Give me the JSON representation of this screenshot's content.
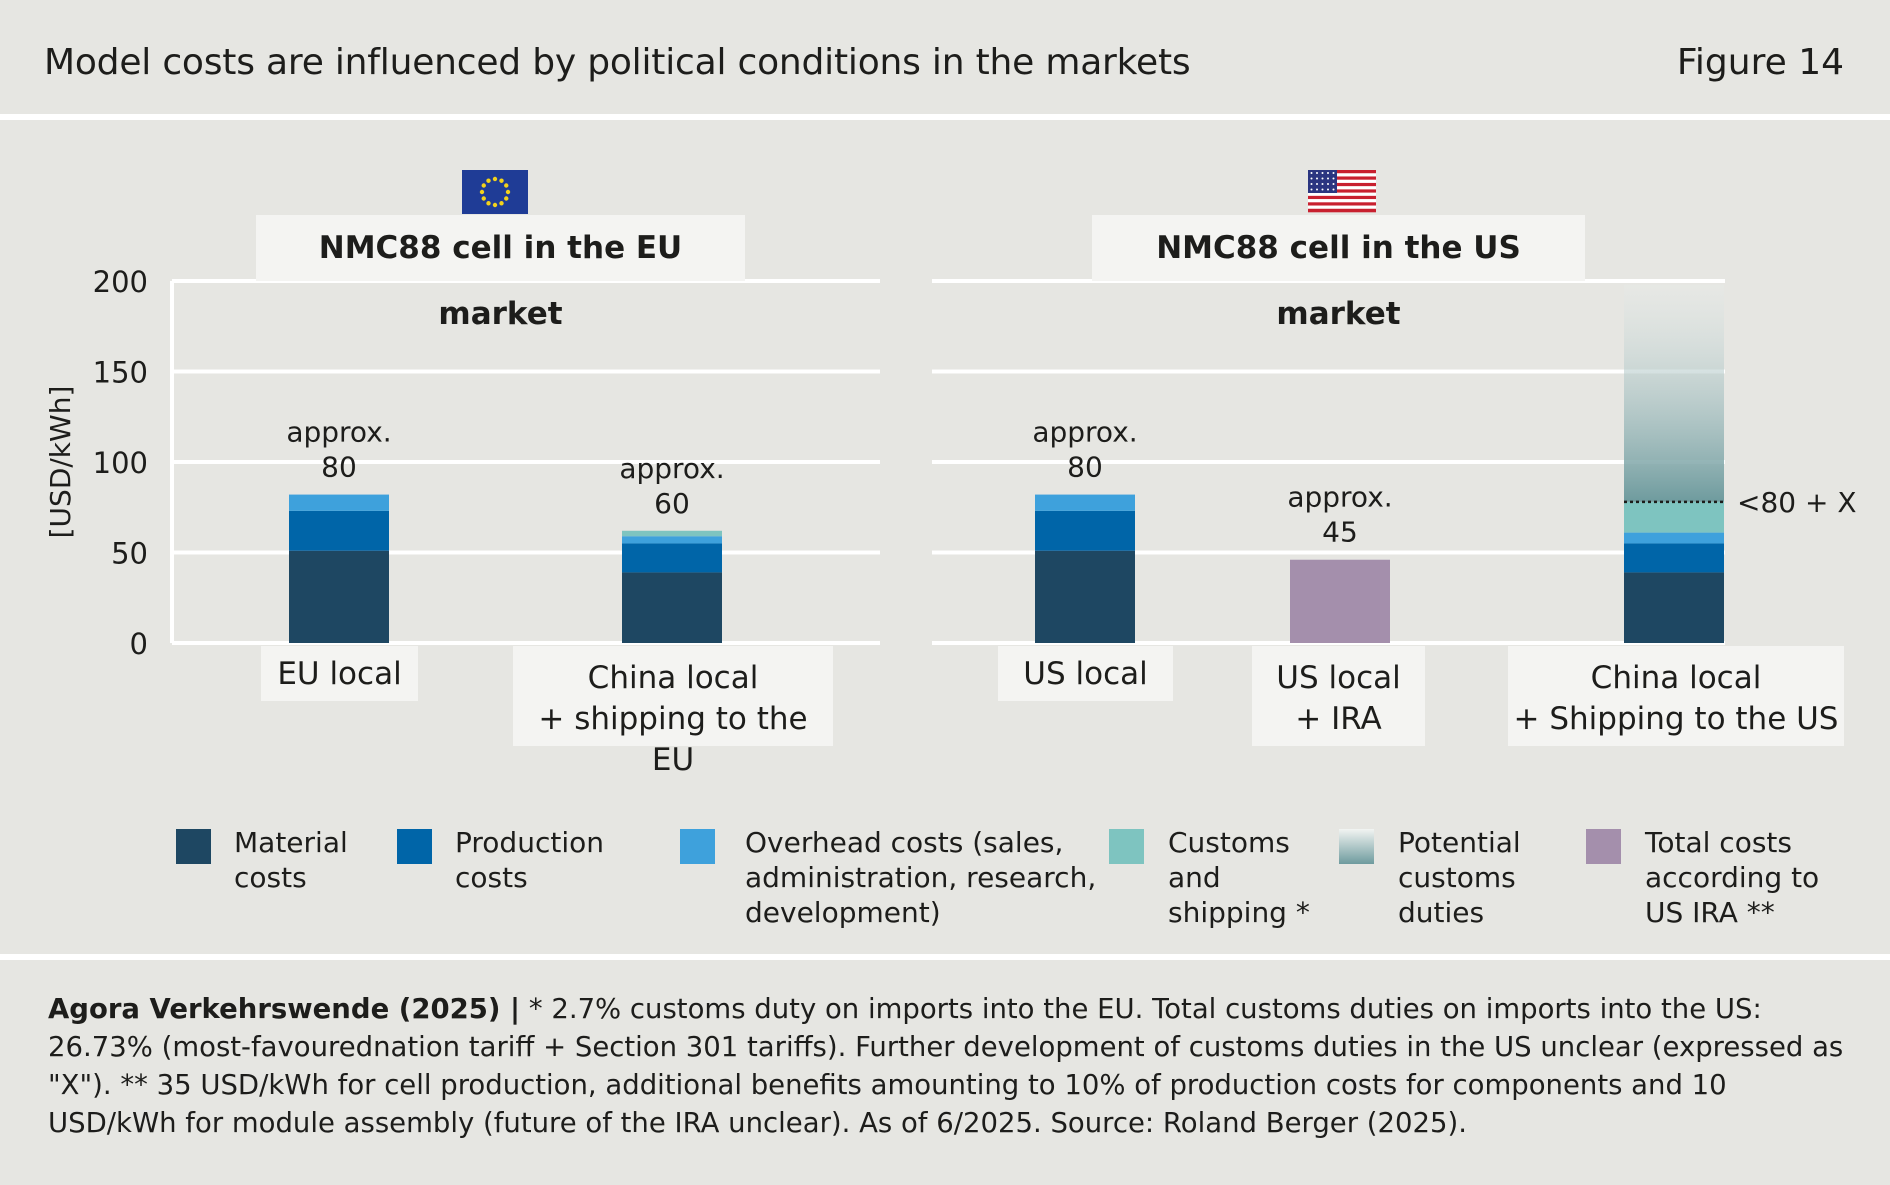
{
  "header": {
    "title": "Model costs are influenced by political conditions in the markets",
    "figure_label": "Figure 14"
  },
  "panels": [
    {
      "title": "NMC88 cell in the EU market",
      "flag": "eu-flag"
    },
    {
      "title": "NMC88 cell in the US market",
      "flag": "us-flag"
    }
  ],
  "chart_data": {
    "type": "bar",
    "stacked": true,
    "ylabel": "[USD/kWh]",
    "ylim": [
      0,
      200
    ],
    "yticks": [
      0,
      50,
      100,
      150,
      200
    ],
    "grid": true,
    "categories": [
      "EU local",
      "China local\n+ shipping to the EU",
      "US local",
      "US local\n+ IRA",
      "China local\n+ Shipping to the US"
    ],
    "panel_of_category": [
      0,
      0,
      1,
      1,
      1
    ],
    "series": [
      {
        "name": "Material costs",
        "color": "#1e4762",
        "values": [
          51,
          39,
          51,
          null,
          39
        ]
      },
      {
        "name": "Production costs",
        "color": "#0065a8",
        "values": [
          22,
          16,
          22,
          null,
          16
        ]
      },
      {
        "name": "Overhead costs (sales, administration, research, development)",
        "color": "#3ea1dc",
        "values": [
          9,
          4,
          9,
          null,
          6
        ]
      },
      {
        "name": "Customs and shipping *",
        "color": "#7ec4c0",
        "values": [
          null,
          3,
          null,
          null,
          17
        ]
      },
      {
        "name": "Potential customs duties",
        "color": "#6e9b9e",
        "gradient": true,
        "values": [
          null,
          null,
          null,
          null,
          120
        ]
      },
      {
        "name": "Total costs according to US IRA **",
        "color": "#a48fac",
        "values": [
          null,
          null,
          null,
          46,
          null
        ]
      }
    ],
    "bar_labels": [
      "approx.\n80",
      "approx.\n60",
      "approx.\n80",
      "approx.\n45",
      null
    ],
    "annotation": {
      "category_index": 4,
      "value": 78,
      "text": "<80 + X",
      "style": "dotted line"
    }
  },
  "legend": [
    {
      "label": "Material\ncosts",
      "color": "#1e4762"
    },
    {
      "label": "Production\ncosts",
      "color": "#0065a8"
    },
    {
      "label": "Overhead costs (sales,\nadministration, research,\ndevelopment)",
      "color": "#3ea1dc"
    },
    {
      "label": "Customs\nand\nshipping *",
      "color": "#7ec4c0"
    },
    {
      "label": "Potential\ncustoms\nduties",
      "color": "gradient"
    },
    {
      "label": "Total costs\naccording to\nUS IRA **",
      "color": "#a48fac"
    }
  ],
  "footnote": {
    "source": "Agora Verkehrswende (2025) |",
    "text": " * 2.7% customs duty on imports into the EU. Total customs duties on imports into the US: 26.73% (most-favourednation tariff + Section 301 tariffs). Further development of customs duties in the US unclear (expressed as \"X\"). ** 35 USD/kWh for cell production, additional benefits amounting to 10% of production costs for components and 10 USD/kWh for module assembly (future of the IRA unclear). As of 6/2025. Source: Roland Berger (2025)."
  }
}
